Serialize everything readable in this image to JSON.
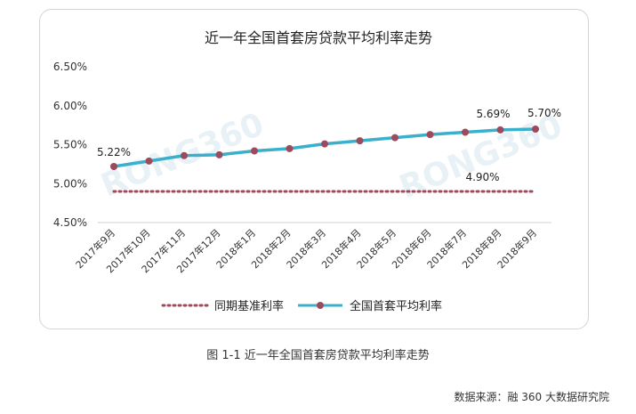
{
  "chart_data": {
    "type": "line",
    "title": "近一年全国首套房贷款平均利率走势",
    "categories": [
      "2017年9月",
      "2017年10月",
      "2017年11月",
      "2017年12月",
      "2018年1月",
      "2018年2月",
      "2018年3月",
      "2018年4月",
      "2018年5月",
      "2018年6月",
      "2018年7月",
      "2018年8月",
      "2018年9月"
    ],
    "y_ticks": [
      "6.50%",
      "6.00%",
      "5.50%",
      "5.00%",
      "4.50%"
    ],
    "ylim": [
      4.5,
      6.5
    ],
    "grid": false,
    "legend_position": "bottom",
    "series": [
      {
        "name": "同期基准利率",
        "style": "dotted",
        "color": "#9c4a5c",
        "values": [
          4.9,
          4.9,
          4.9,
          4.9,
          4.9,
          4.9,
          4.9,
          4.9,
          4.9,
          4.9,
          4.9,
          4.9,
          4.9
        ]
      },
      {
        "name": "全国首套平均利率",
        "style": "solid-with-markers",
        "color": "#3ab0cc",
        "marker_color": "#9c4a5c",
        "values": [
          5.22,
          5.29,
          5.36,
          5.37,
          5.42,
          5.45,
          5.51,
          5.55,
          5.59,
          5.63,
          5.66,
          5.69,
          5.7
        ]
      }
    ],
    "annotations": [
      {
        "text": "5.22%",
        "series": 1,
        "index": 0
      },
      {
        "text": "5.69%",
        "series": 1,
        "index": 11
      },
      {
        "text": "5.70%",
        "series": 1,
        "index": 12
      },
      {
        "text": "4.90%",
        "series": 0,
        "index": 11
      }
    ]
  },
  "watermarks": [
    "RONG360",
    "RONG360"
  ],
  "caption": "图 1-1  近一年全国首套房贷款平均利率走势",
  "source": "数据来源：融 360 大数据研究院"
}
